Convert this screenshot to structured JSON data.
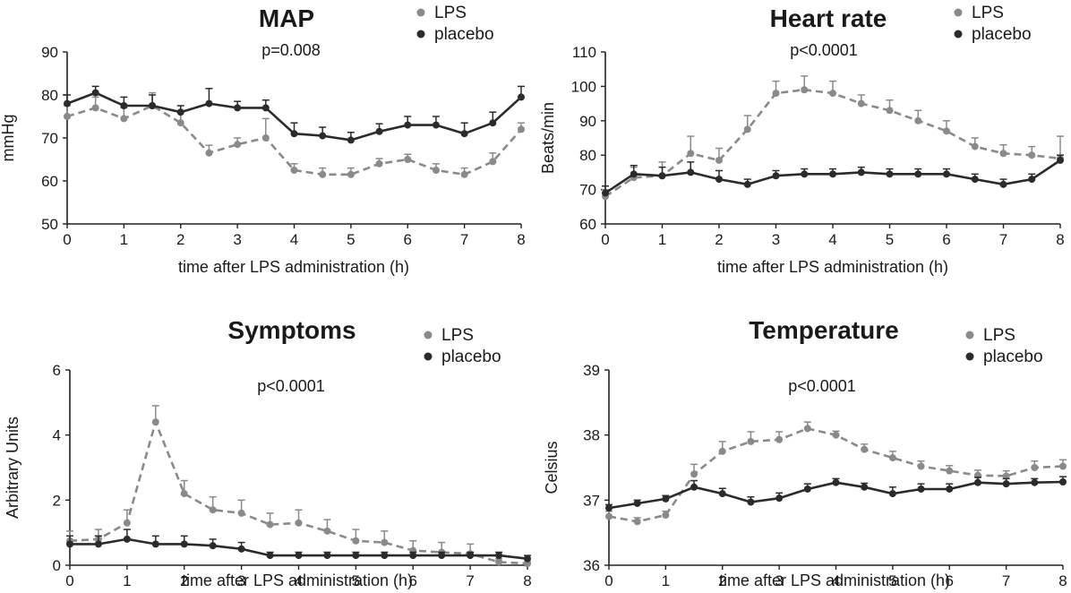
{
  "chart_data": [
    {
      "id": "map",
      "type": "line",
      "title": "MAP",
      "annotation": "p=0.008",
      "xlabel": "time after LPS administration (h)",
      "ylabel": "mmHg",
      "xlim": [
        0,
        8
      ],
      "ylim": [
        50,
        90
      ],
      "xticks": [
        "0",
        "1",
        "2",
        "3",
        "4",
        "5",
        "6",
        "7",
        "8"
      ],
      "yticks": [
        "50",
        "60",
        "70",
        "80",
        "90"
      ],
      "ytick_values": [
        50,
        60,
        70,
        80,
        90
      ],
      "x": [
        0,
        0.5,
        1,
        1.5,
        2,
        2.5,
        3,
        3.5,
        4,
        4.5,
        5,
        5.5,
        6,
        6.5,
        7,
        7.5,
        8
      ],
      "legend": [
        "LPS",
        "placebo"
      ],
      "series": [
        {
          "name": "LPS",
          "style": "dashed",
          "color": "#8a8a8a",
          "values": [
            75,
            77,
            74.5,
            77.5,
            73.5,
            66.5,
            68.5,
            70,
            62.5,
            61.5,
            61.5,
            64,
            65,
            62.5,
            61.5,
            64.5,
            72
          ],
          "errors": [
            2.5,
            2.5,
            2.5,
            3,
            2.5,
            1.8,
            1.5,
            4.5,
            1.5,
            1.5,
            1.5,
            1.2,
            1.2,
            1.5,
            1.5,
            2,
            1.5
          ]
        },
        {
          "name": "placebo",
          "style": "solid",
          "color": "#2b2b2b",
          "values": [
            78,
            80.5,
            77.5,
            77.5,
            76,
            78,
            77,
            77,
            71,
            70.5,
            69.5,
            71.5,
            73,
            73,
            71,
            73.5,
            79.5
          ],
          "errors": [
            2,
            1.5,
            2,
            2.5,
            1.5,
            3.5,
            1.5,
            1.8,
            2.5,
            2,
            1.8,
            1.8,
            2,
            2,
            2.5,
            2.5,
            2.5
          ]
        }
      ]
    },
    {
      "id": "hr",
      "type": "line",
      "title": "Heart rate",
      "annotation": "p<0.0001",
      "xlabel": "time after LPS administration (h)",
      "ylabel": "Beats/min",
      "xlim": [
        0,
        8
      ],
      "ylim": [
        60,
        110
      ],
      "xticks": [
        "0",
        "1",
        "2",
        "3",
        "4",
        "5",
        "6",
        "7",
        "8"
      ],
      "yticks": [
        "60",
        "70",
        "80",
        "90",
        "100",
        "110"
      ],
      "ytick_values": [
        60,
        70,
        80,
        90,
        100,
        110
      ],
      "x": [
        0,
        0.5,
        1,
        1.5,
        2,
        2.5,
        3,
        3.5,
        4,
        4.5,
        5,
        5.5,
        6,
        6.5,
        7,
        7.5,
        8
      ],
      "legend": [
        "LPS",
        "placebo"
      ],
      "series": [
        {
          "name": "LPS",
          "style": "dashed",
          "color": "#8a8a8a",
          "values": [
            68,
            73.5,
            74,
            80.5,
            78.5,
            87.5,
            98,
            99,
            98,
            95,
            93,
            90,
            87,
            82.5,
            80.5,
            80,
            79
          ],
          "errors": [
            2,
            3,
            4,
            5,
            3.5,
            4,
            3.5,
            4,
            3.5,
            2.5,
            3,
            3,
            3,
            2.5,
            2.5,
            2.5,
            6.5
          ]
        },
        {
          "name": "placebo",
          "style": "solid",
          "color": "#2b2b2b",
          "values": [
            69,
            74.5,
            74,
            75,
            73,
            71.5,
            74,
            74.5,
            74.5,
            75,
            74.5,
            74.5,
            74.5,
            73,
            71.5,
            73,
            78.5
          ],
          "errors": [
            2,
            2.5,
            2.5,
            3,
            2.5,
            1.5,
            1.5,
            1.5,
            1.5,
            1.5,
            1.5,
            1.5,
            1.5,
            1.5,
            1.5,
            1.5,
            1.5
          ]
        }
      ]
    },
    {
      "id": "symptoms",
      "type": "line",
      "title": "Symptoms",
      "annotation": "p<0.0001",
      "xlabel": "time after LPS administration (h)",
      "ylabel": "Arbitrary Units",
      "xlim": [
        0,
        8
      ],
      "ylim": [
        0,
        6
      ],
      "xticks": [
        "0",
        "1",
        "2",
        "3",
        "4",
        "5",
        "6",
        "7",
        "8"
      ],
      "yticks": [
        "0",
        "2",
        "4",
        "6"
      ],
      "ytick_values": [
        0,
        2,
        4,
        6
      ],
      "x": [
        0,
        0.5,
        1,
        1.5,
        2,
        2.5,
        3,
        3.5,
        4,
        4.5,
        5,
        5.5,
        6,
        6.5,
        7,
        7.5,
        8
      ],
      "legend": [
        "LPS",
        "placebo"
      ],
      "series": [
        {
          "name": "LPS",
          "style": "dashed",
          "color": "#8a8a8a",
          "values": [
            0.75,
            0.8,
            1.3,
            4.4,
            2.2,
            1.7,
            1.6,
            1.25,
            1.3,
            1.05,
            0.75,
            0.7,
            0.45,
            0.4,
            0.35,
            0.1,
            0.05
          ],
          "errors": [
            0.3,
            0.3,
            0.4,
            0.5,
            0.4,
            0.4,
            0.4,
            0.35,
            0.4,
            0.35,
            0.35,
            0.35,
            0.3,
            0.3,
            0.3,
            0.1,
            0.05
          ]
        },
        {
          "name": "placebo",
          "style": "solid",
          "color": "#2b2b2b",
          "values": [
            0.65,
            0.65,
            0.8,
            0.65,
            0.65,
            0.6,
            0.5,
            0.3,
            0.3,
            0.3,
            0.3,
            0.3,
            0.3,
            0.3,
            0.3,
            0.3,
            0.2
          ],
          "errors": [
            0.25,
            0.25,
            0.3,
            0.25,
            0.25,
            0.2,
            0.2,
            0.1,
            0.1,
            0.1,
            0.1,
            0.1,
            0.1,
            0.1,
            0.1,
            0.1,
            0.1
          ]
        }
      ]
    },
    {
      "id": "temp",
      "type": "line",
      "title": "Temperature",
      "annotation": "p<0.0001",
      "xlabel": "time after LPS administration (h)",
      "ylabel": "Celsius",
      "xlim": [
        0,
        8
      ],
      "ylim": [
        36,
        39
      ],
      "xticks": [
        "0",
        "1",
        "2",
        "3",
        "4",
        "5",
        "6",
        "7",
        "8"
      ],
      "yticks": [
        "36",
        "37",
        "38",
        "39"
      ],
      "ytick_values": [
        36,
        37,
        38,
        39
      ],
      "x": [
        0,
        0.5,
        1,
        1.5,
        2,
        2.5,
        3,
        3.5,
        4,
        4.5,
        5,
        5.5,
        6,
        6.5,
        7,
        7.5,
        8
      ],
      "legend": [
        "LPS",
        "placebo"
      ],
      "series": [
        {
          "name": "LPS",
          "style": "dashed",
          "color": "#8a8a8a",
          "values": [
            36.75,
            36.67,
            36.77,
            37.4,
            37.75,
            37.9,
            37.93,
            38.1,
            38,
            37.78,
            37.65,
            37.52,
            37.45,
            37.38,
            37.37,
            37.5,
            37.52
          ],
          "errors": [
            0.08,
            0.06,
            0.06,
            0.15,
            0.15,
            0.15,
            0.12,
            0.1,
            0.06,
            0.08,
            0.1,
            0.08,
            0.08,
            0.08,
            0.08,
            0.1,
            0.1
          ]
        },
        {
          "name": "placebo",
          "style": "solid",
          "color": "#2b2b2b",
          "values": [
            36.88,
            36.95,
            37.02,
            37.2,
            37.1,
            36.97,
            37.03,
            37.17,
            37.27,
            37.2,
            37.1,
            37.17,
            37.17,
            37.27,
            37.25,
            37.27,
            37.28
          ],
          "errors": [
            0.05,
            0.05,
            0.05,
            0.1,
            0.08,
            0.08,
            0.08,
            0.08,
            0.06,
            0.06,
            0.1,
            0.08,
            0.08,
            0.08,
            0.08,
            0.06,
            0.08
          ]
        }
      ]
    }
  ]
}
